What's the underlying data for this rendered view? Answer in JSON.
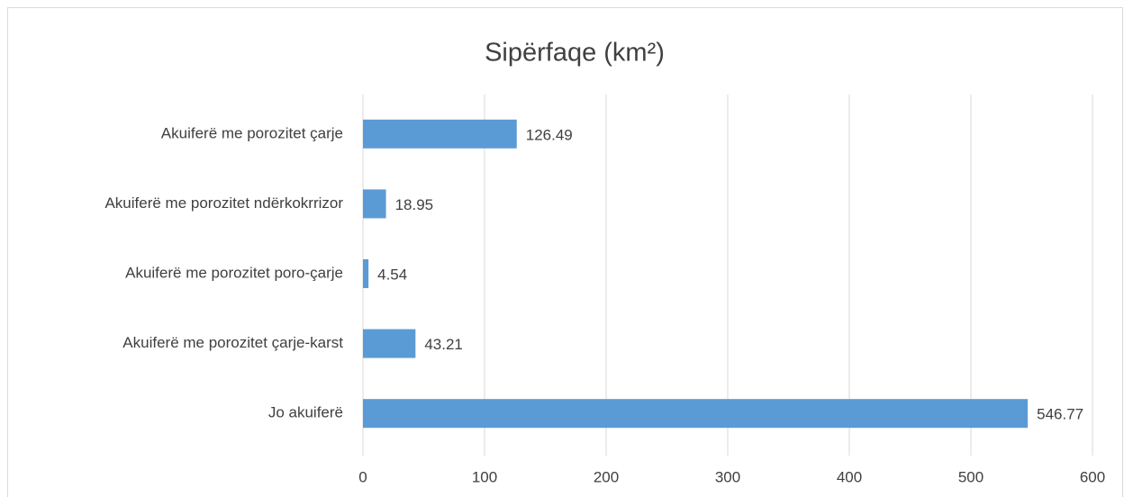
{
  "chart_data": {
    "type": "bar",
    "orientation": "horizontal",
    "title": "Sipërfaqe (km²)",
    "categories": [
      "Akuiferë me porozitet çarje",
      "Akuiferë me porozitet ndërkokrrizor",
      "Akuiferë me porozitet poro-çarje",
      "Akuiferë me porozitet çarje-karst",
      "Jo akuiferë"
    ],
    "values": [
      126.49,
      18.95,
      4.54,
      43.21,
      546.77
    ],
    "color": "#5b9bd5",
    "xlim": [
      0,
      600
    ],
    "xticks": [
      0,
      100,
      200,
      300,
      400,
      500,
      600
    ],
    "grid": true
  }
}
